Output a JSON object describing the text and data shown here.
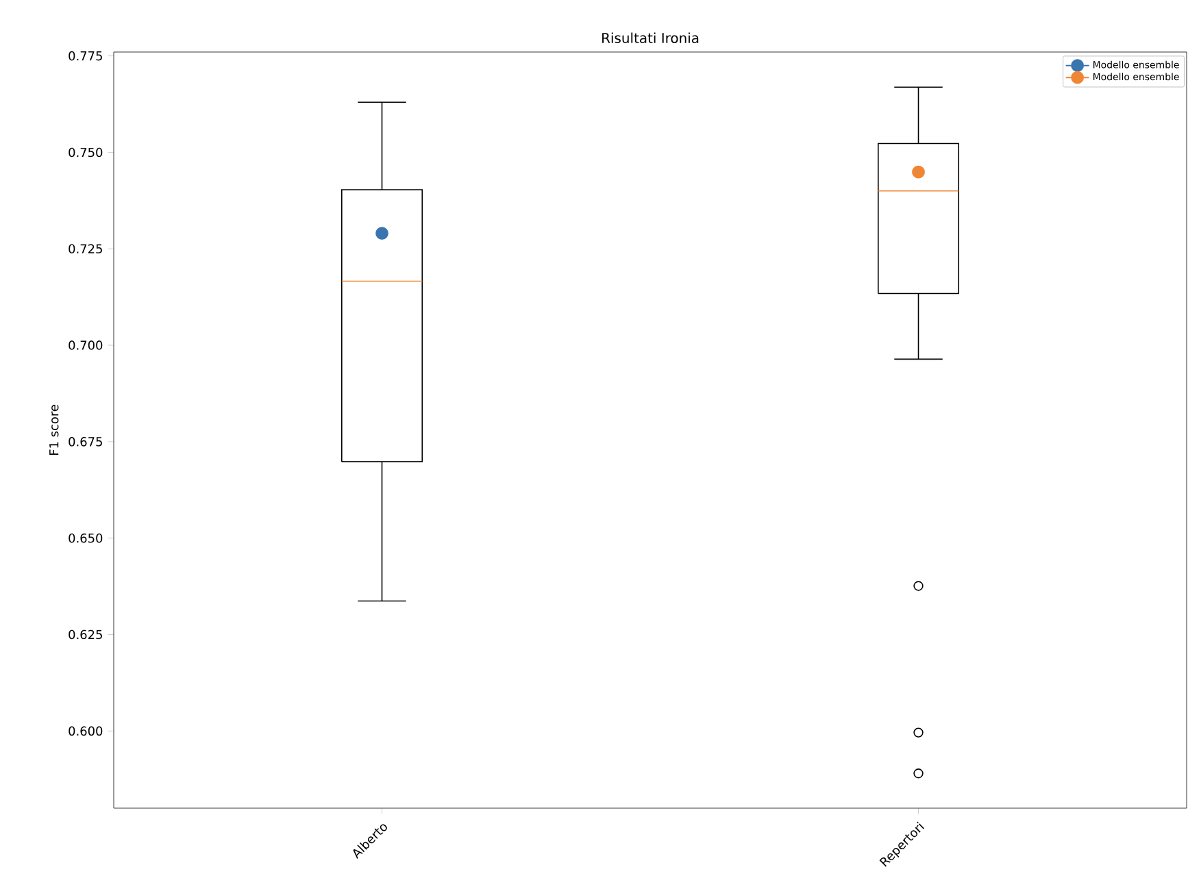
{
  "chart_data": {
    "type": "box",
    "title": "Risultati Ironia",
    "ylabel": "F1 score",
    "categories": [
      "Alberto",
      "Repertori"
    ],
    "boxes": [
      {
        "low": 0.6337,
        "q1": 0.6698,
        "median": 0.7166,
        "q3": 0.7403,
        "high": 0.763
      },
      {
        "low": 0.6964,
        "q1": 0.7134,
        "median": 0.74,
        "q3": 0.7523,
        "high": 0.7669,
        "outliers": [
          0.6376,
          0.5996,
          0.589
        ]
      }
    ],
    "series": [
      {
        "type": "scatter",
        "name": "Modello ensemble",
        "color": "#3a75b0",
        "x": [
          "Alberto"
        ],
        "values": [
          0.729
        ]
      },
      {
        "type": "scatter",
        "name": "Modello ensemble",
        "color": "#ef8636",
        "x": [
          "Repertori"
        ],
        "values": [
          0.7449
        ]
      }
    ],
    "ylim": [
      0.58,
      0.776
    ],
    "yticks": [
      {
        "value": 0.6,
        "label": "0.600"
      },
      {
        "value": 0.625,
        "label": "0.625"
      },
      {
        "value": 0.65,
        "label": "0.650"
      },
      {
        "value": 0.675,
        "label": "0.675"
      },
      {
        "value": 0.7,
        "label": "0.700"
      },
      {
        "value": 0.725,
        "label": "0.725"
      },
      {
        "value": 0.75,
        "label": "0.750"
      },
      {
        "value": 0.775,
        "label": "0.775"
      }
    ],
    "legend": "top right",
    "marker": "circle"
  }
}
